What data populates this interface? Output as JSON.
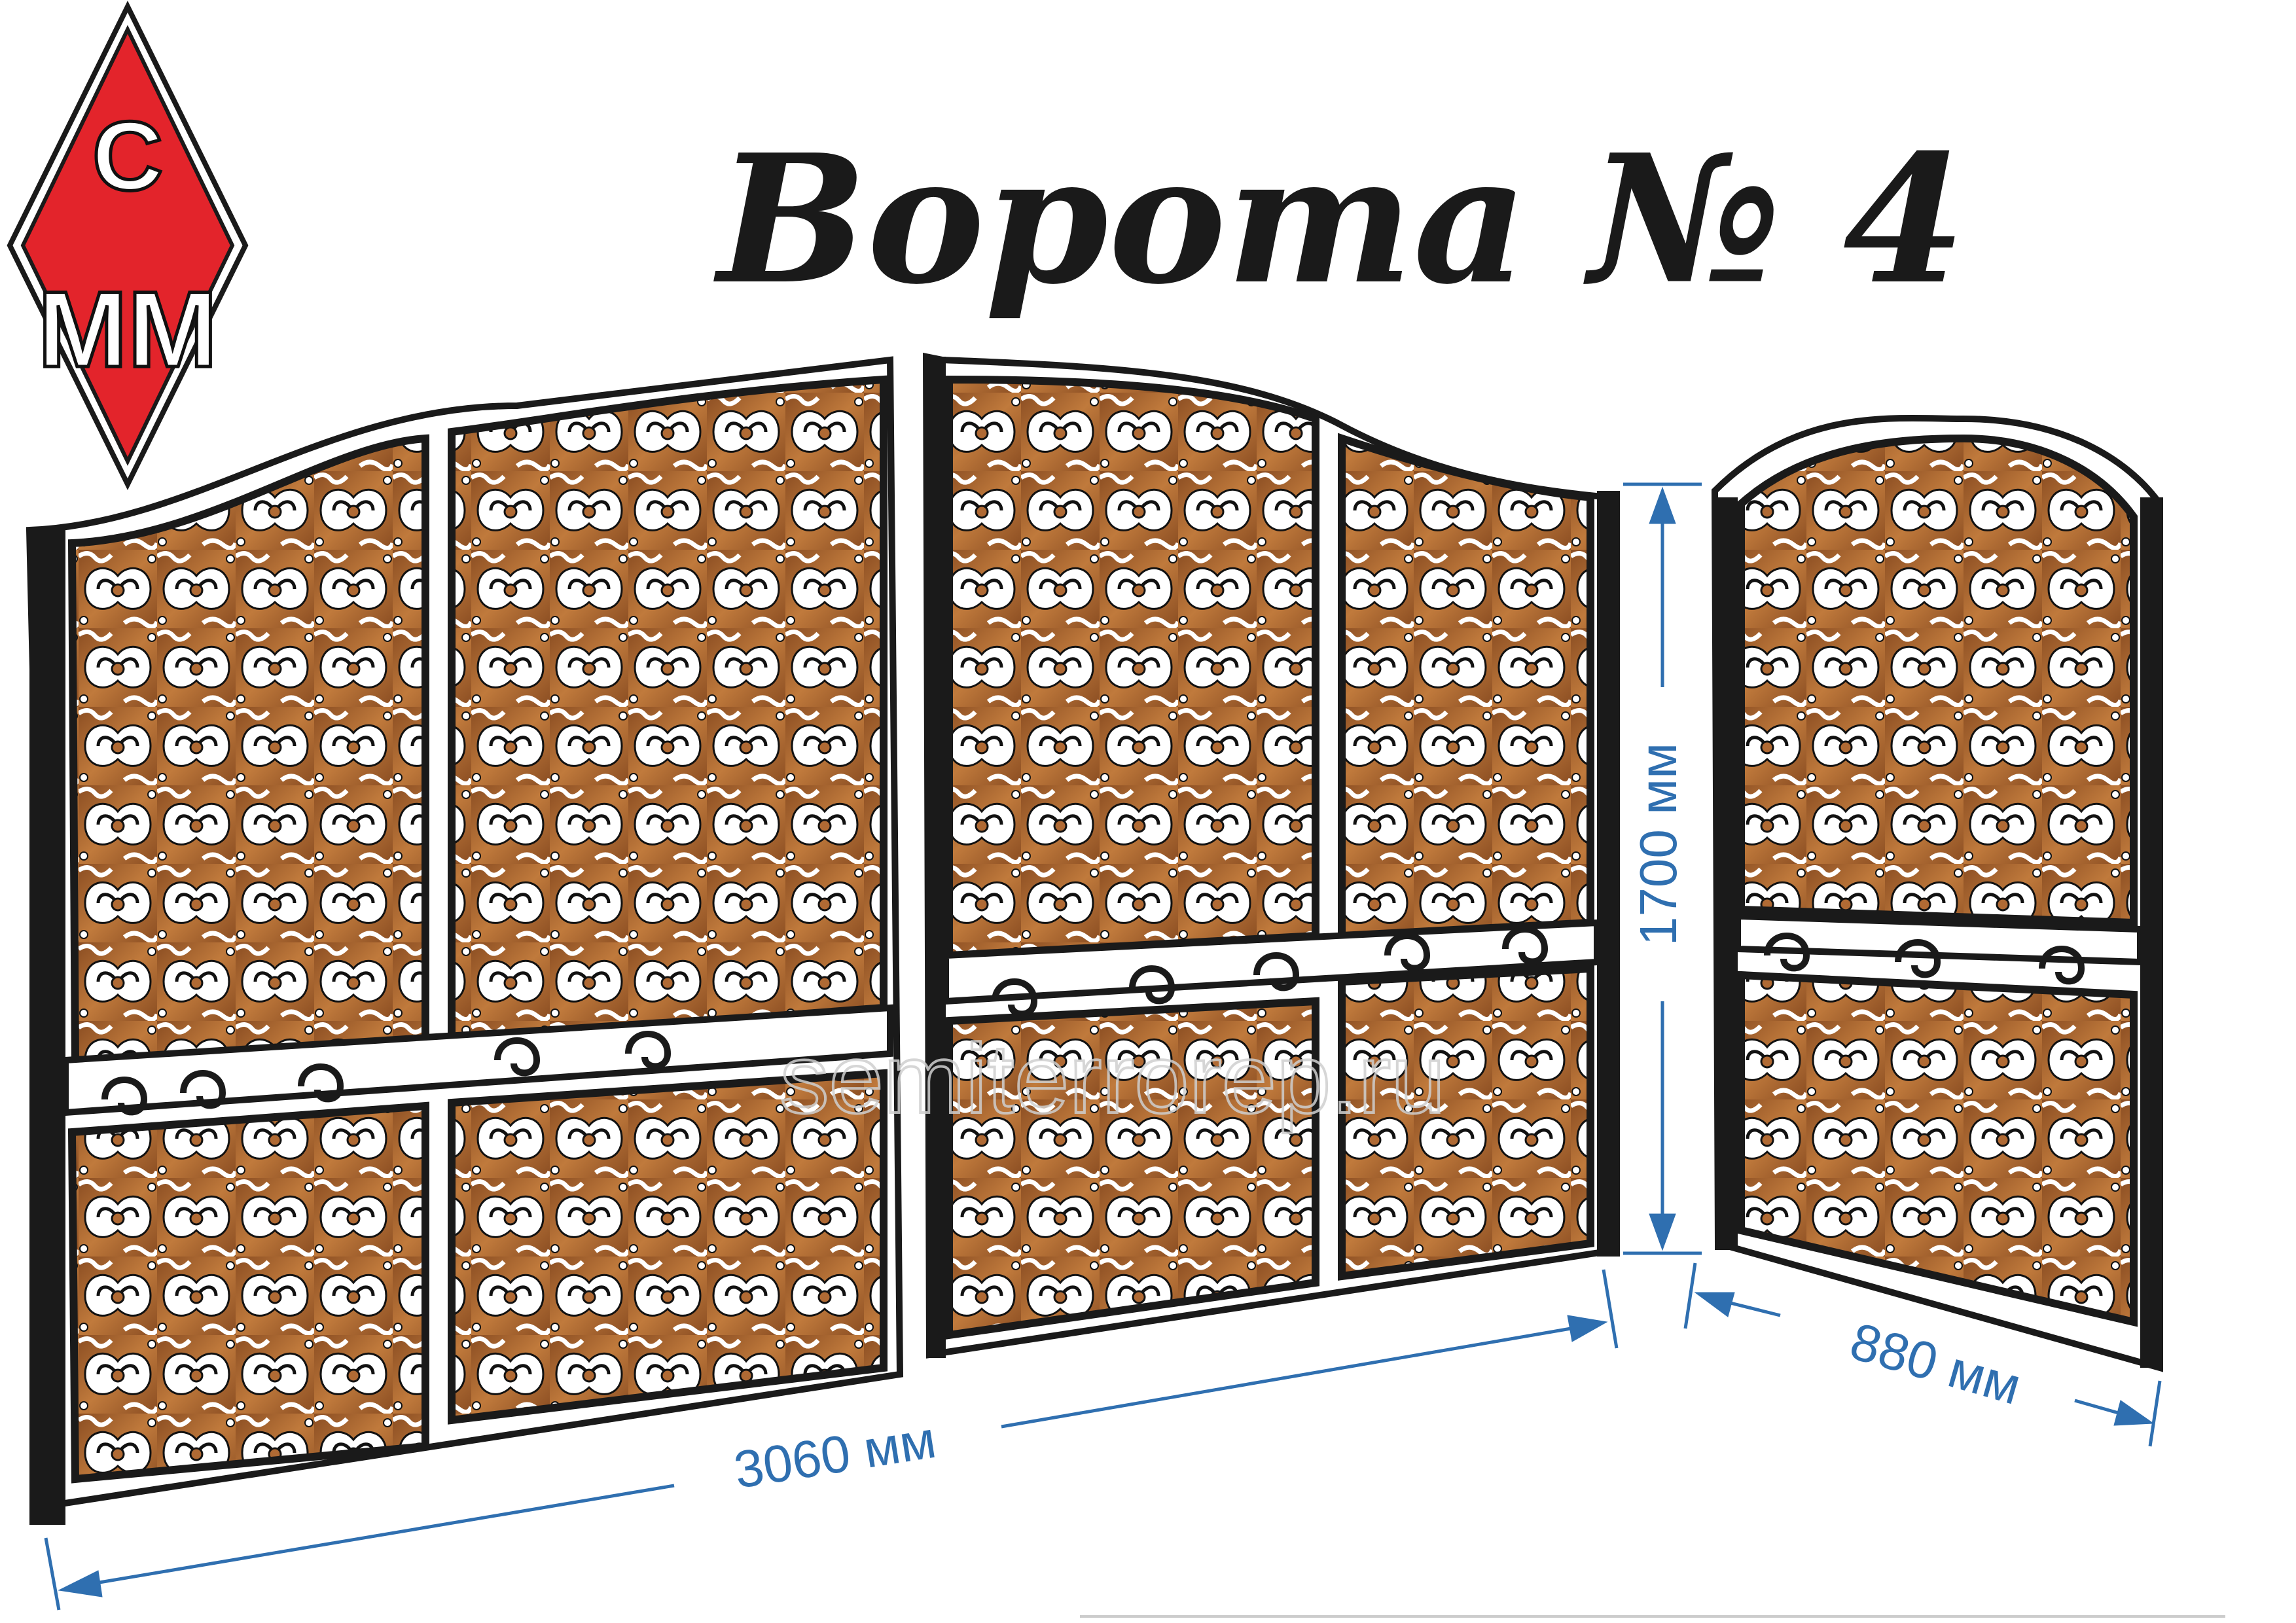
{
  "title": "Ворота № 4",
  "logo": {
    "letters": "СММ",
    "top": "С",
    "bottom": "ММ"
  },
  "dimensions": {
    "gate_width": "3060 мм",
    "height": "1700 мм",
    "wicket_width": "880 мм"
  },
  "watermark": "semiterrorep.ru",
  "colors": {
    "frame": "#1a1a1a",
    "panel": "#b06a34",
    "panel_dark": "#7a4420",
    "dimension": "#2f6fb0",
    "logo_red": "#e3242b"
  }
}
